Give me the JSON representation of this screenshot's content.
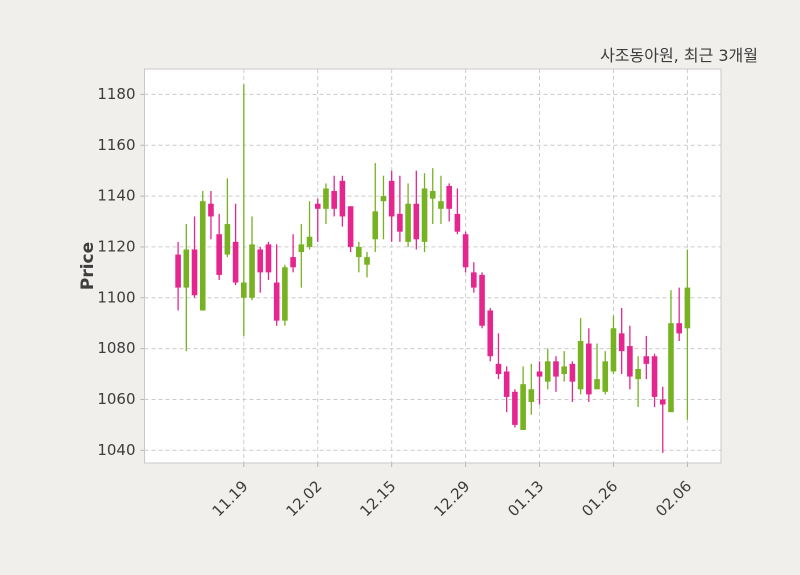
{
  "chart_data": {
    "type": "candlestick",
    "title": "사조동아원, 최근 3개월",
    "ylabel": "Price",
    "xlabel": "",
    "grid": true,
    "legend": false,
    "ylim": [
      1035,
      1190
    ],
    "yticks": [
      1040,
      1060,
      1080,
      1100,
      1120,
      1140,
      1160,
      1180
    ],
    "xticks": [
      {
        "index": 8,
        "label": "11.19"
      },
      {
        "index": 17,
        "label": "12.02"
      },
      {
        "index": 26,
        "label": "12.15"
      },
      {
        "index": 35,
        "label": "12.29"
      },
      {
        "index": 44,
        "label": "01.13"
      },
      {
        "index": 53,
        "label": "01.26"
      },
      {
        "index": 62,
        "label": "02.06"
      }
    ],
    "colors": {
      "up": "#76b222",
      "down": "#e4268e",
      "grid": "#cccccc",
      "spine": "#c8c8c8",
      "tick": "#b5b5b5",
      "text": "#3d3d3d",
      "figure_bg": "#f0efec",
      "plot_bg": "#ffffff"
    },
    "ohlc_order": [
      "open",
      "high",
      "low",
      "close"
    ],
    "candles": [
      [
        1117,
        1122,
        1095,
        1104
      ],
      [
        1104,
        1129,
        1079,
        1119
      ],
      [
        1119,
        1132,
        1100,
        1101
      ],
      [
        1095,
        1142,
        1095,
        1138
      ],
      [
        1137,
        1142,
        1123,
        1132
      ],
      [
        1125,
        1133,
        1107,
        1109
      ],
      [
        1117,
        1147,
        1116,
        1129
      ],
      [
        1122,
        1137,
        1105,
        1106
      ],
      [
        1100,
        1184,
        1085,
        1106
      ],
      [
        1100,
        1132,
        1099,
        1121
      ],
      [
        1119,
        1120,
        1102,
        1110
      ],
      [
        1121,
        1122,
        1107,
        1110
      ],
      [
        1106,
        1121,
        1089,
        1091
      ],
      [
        1091,
        1113,
        1089,
        1112
      ],
      [
        1116,
        1125,
        1110,
        1112
      ],
      [
        1118,
        1129,
        1104,
        1121
      ],
      [
        1120,
        1138,
        1119,
        1124
      ],
      [
        1137,
        1139,
        1122,
        1135
      ],
      [
        1135,
        1145,
        1129,
        1143
      ],
      [
        1142,
        1148,
        1132,
        1135
      ],
      [
        1146,
        1148,
        1128,
        1132
      ],
      [
        1136,
        1136,
        1118,
        1120
      ],
      [
        1116,
        1122,
        1110,
        1120
      ],
      [
        1113,
        1118,
        1108,
        1116
      ],
      [
        1123,
        1153,
        1118,
        1134
      ],
      [
        1138,
        1148,
        1123,
        1140
      ],
      [
        1146,
        1150,
        1122,
        1132
      ],
      [
        1133,
        1148,
        1122,
        1126
      ],
      [
        1122,
        1145,
        1120,
        1137
      ],
      [
        1137,
        1150,
        1119,
        1123
      ],
      [
        1122,
        1149,
        1118,
        1143
      ],
      [
        1139,
        1151,
        1129,
        1142
      ],
      [
        1135,
        1148,
        1129,
        1138
      ],
      [
        1144,
        1145,
        1130,
        1135
      ],
      [
        1133,
        1143,
        1125,
        1126
      ],
      [
        1125,
        1126,
        1110,
        1112
      ],
      [
        1110,
        1114,
        1102,
        1104
      ],
      [
        1109,
        1110,
        1088,
        1089
      ],
      [
        1095,
        1096,
        1075,
        1077
      ],
      [
        1074,
        1086,
        1068,
        1070
      ],
      [
        1071,
        1073,
        1055,
        1061
      ],
      [
        1063,
        1064,
        1049,
        1050
      ],
      [
        1048,
        1073,
        1048,
        1066
      ],
      [
        1059,
        1074,
        1054,
        1064
      ],
      [
        1071,
        1075,
        1058,
        1069
      ],
      [
        1067,
        1080,
        1064,
        1075
      ],
      [
        1075,
        1077,
        1063,
        1069
      ],
      [
        1070,
        1079,
        1067,
        1073
      ],
      [
        1074,
        1075,
        1059,
        1067
      ],
      [
        1064,
        1092,
        1062,
        1083
      ],
      [
        1082,
        1088,
        1059,
        1062
      ],
      [
        1064,
        1082,
        1064,
        1068
      ],
      [
        1063,
        1079,
        1062,
        1075
      ],
      [
        1071,
        1093,
        1070,
        1088
      ],
      [
        1086,
        1096,
        1070,
        1079
      ],
      [
        1081,
        1089,
        1064,
        1069
      ],
      [
        1068,
        1077,
        1057,
        1072
      ],
      [
        1077,
        1085,
        1068,
        1074
      ],
      [
        1077,
        1078,
        1057,
        1061
      ],
      [
        1060,
        1065,
        1039,
        1058
      ],
      [
        1055,
        1103,
        1055,
        1090
      ],
      [
        1090,
        1104,
        1083,
        1086
      ],
      [
        1088,
        1119,
        1052,
        1104
      ]
    ]
  }
}
